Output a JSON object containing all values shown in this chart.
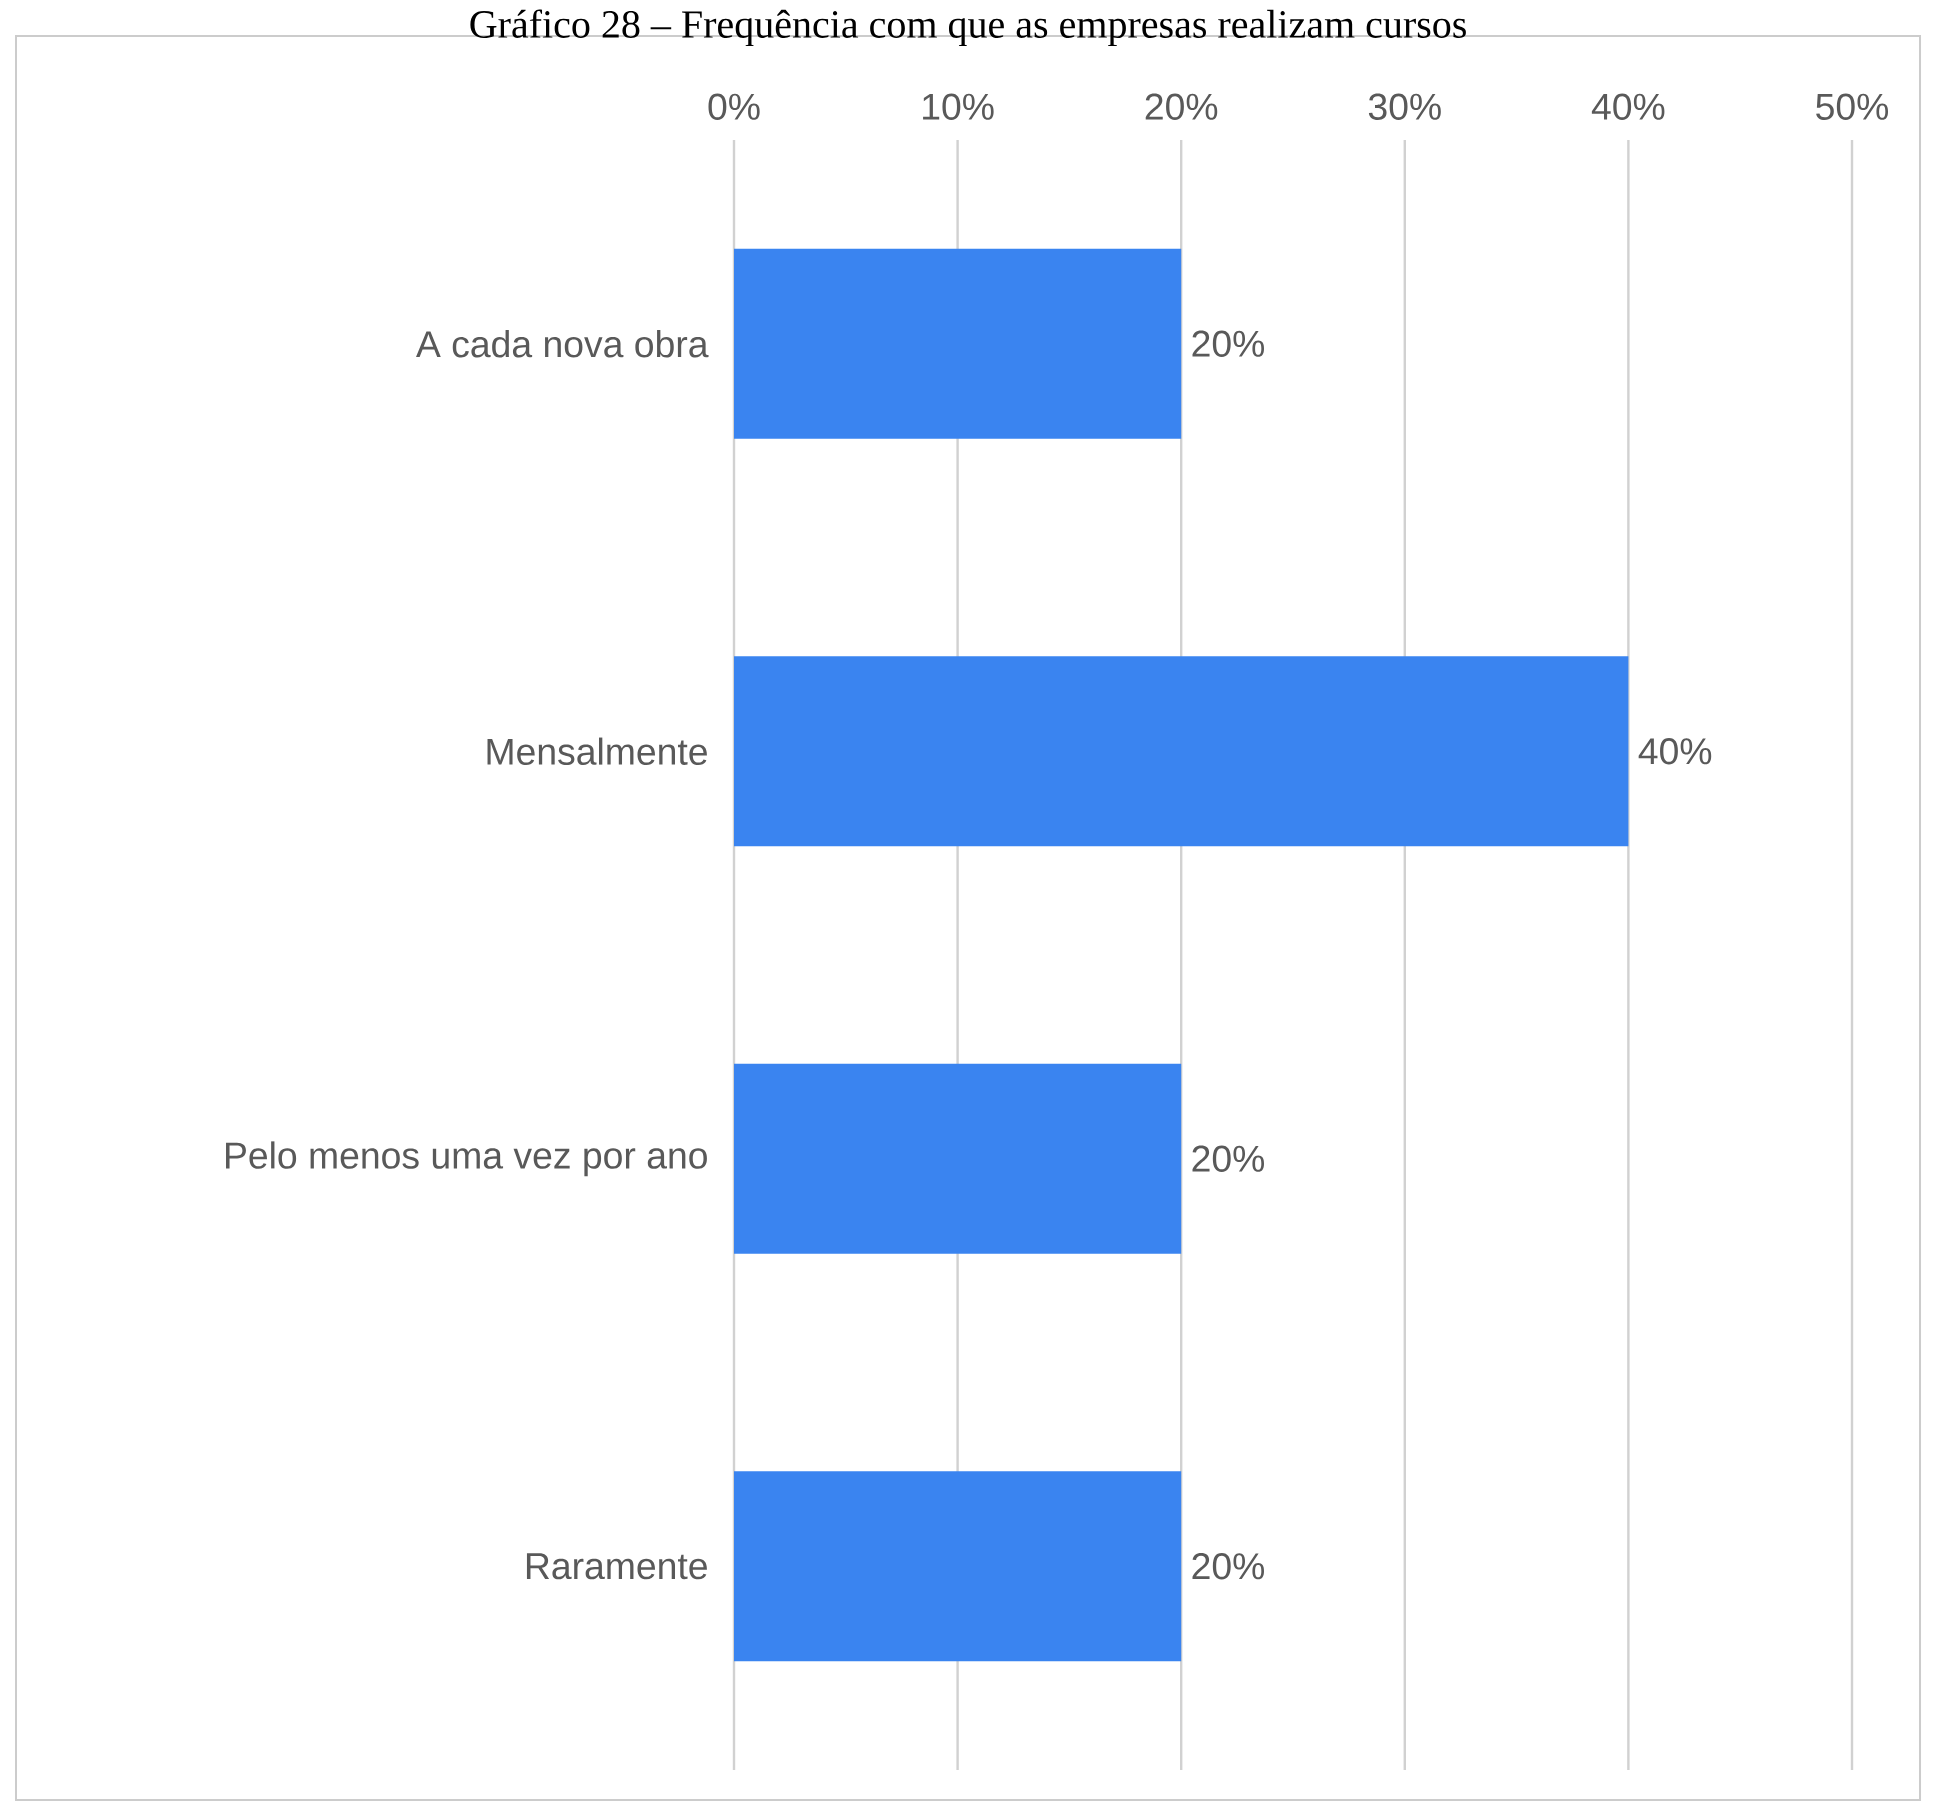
{
  "chart_data": {
    "type": "bar",
    "orientation": "horizontal",
    "title": "Gráfico 28 – Frequência com que as empresas realizam cursos",
    "categories": [
      "A cada nova obra",
      "Mensalmente",
      "Pelo menos uma vez por ano",
      "Raramente"
    ],
    "values": [
      20,
      40,
      20,
      20
    ],
    "value_labels": [
      "20%",
      "40%",
      "20%",
      "20%"
    ],
    "color": "#3a84f0",
    "xlim": [
      0,
      50
    ],
    "xticks": [
      {
        "value": 0,
        "label": "0%"
      },
      {
        "value": 10,
        "label": "10%"
      },
      {
        "value": 20,
        "label": "20%"
      },
      {
        "value": 30,
        "label": "30%"
      },
      {
        "value": 40,
        "label": "40%"
      },
      {
        "value": 50,
        "label": "50%"
      }
    ],
    "grid": "x"
  }
}
